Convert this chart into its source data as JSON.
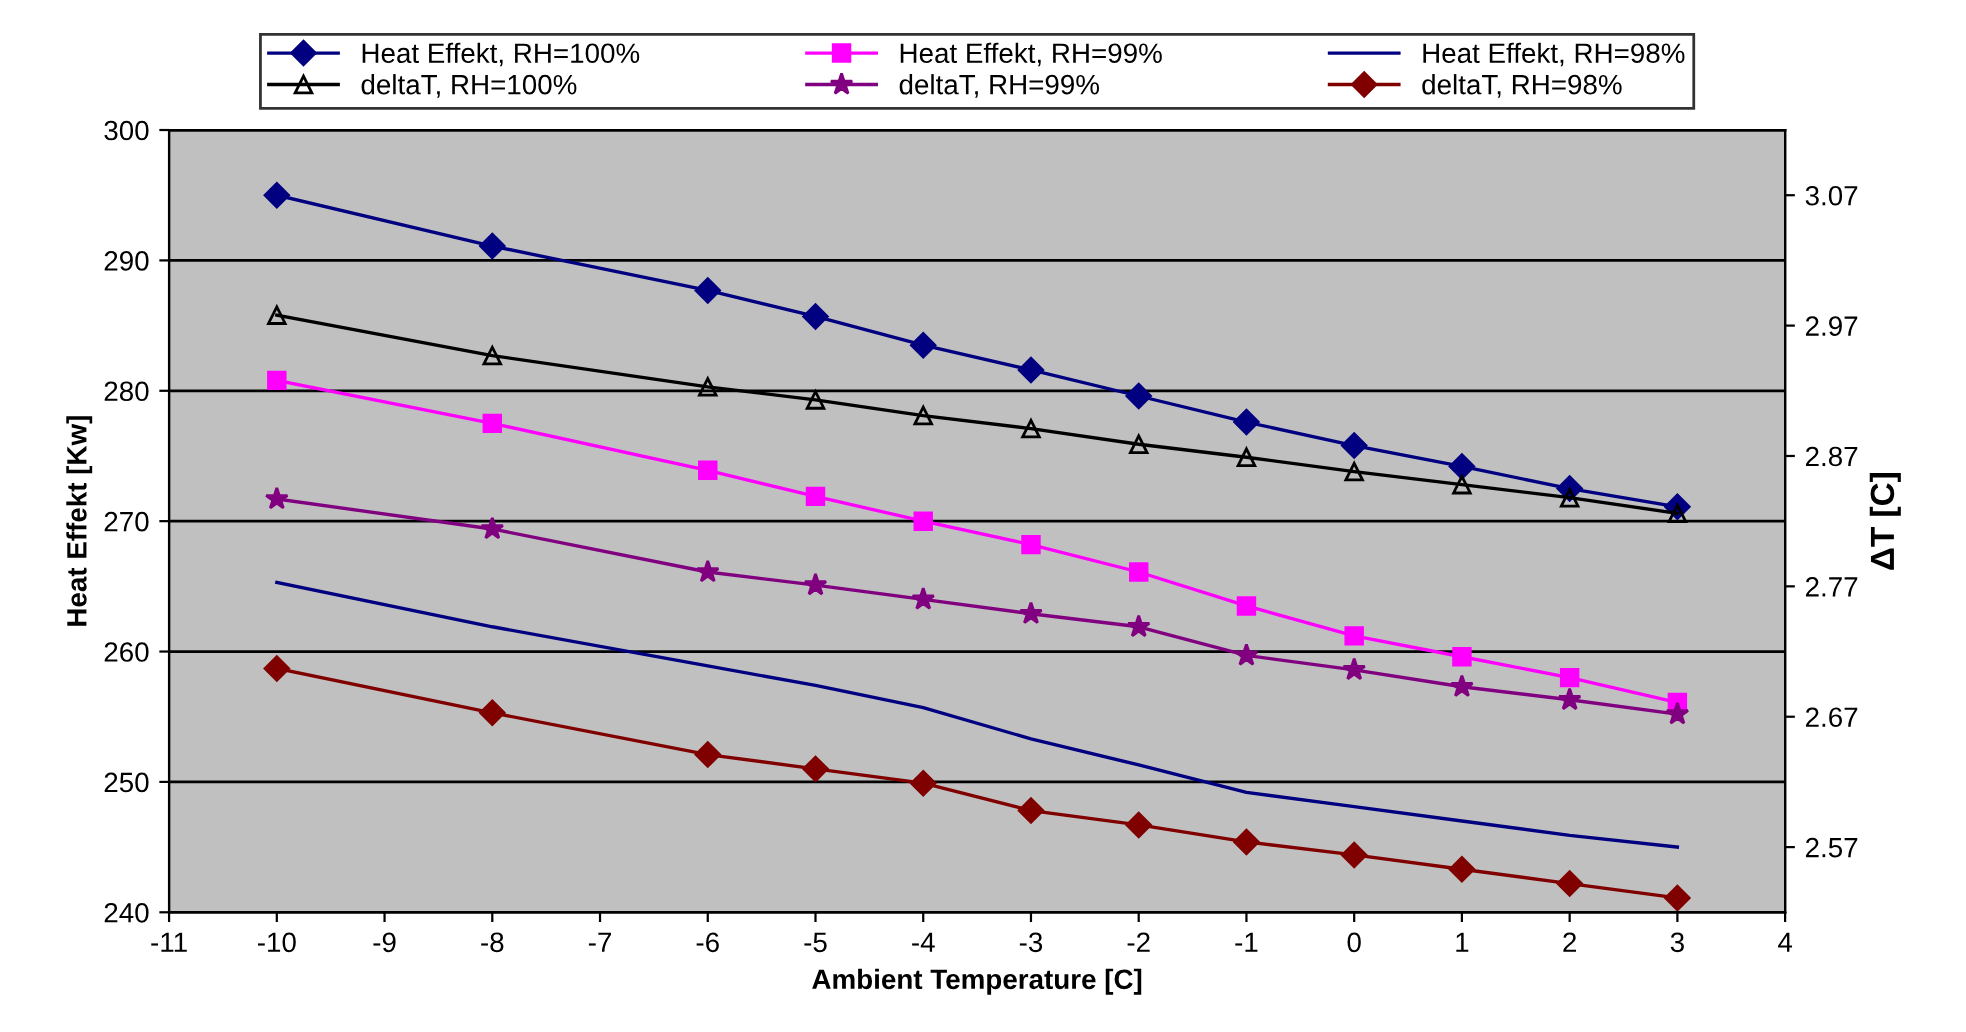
{
  "chart_data": {
    "type": "line",
    "xlabel": "Ambient Temperature [C]",
    "ylabel": "Heat Effekt [Kw]",
    "y2label": "ΔT [C]",
    "x": [
      -10,
      -8,
      -6,
      -5,
      -4,
      -3,
      -2,
      -1,
      0,
      1,
      2,
      3
    ],
    "xlim": [
      -11,
      4
    ],
    "xticks": [
      -11,
      -10,
      -9,
      -8,
      -7,
      -6,
      -5,
      -4,
      -3,
      -2,
      -1,
      0,
      1,
      2,
      3,
      4
    ],
    "ylim": [
      240,
      300
    ],
    "yticks": [
      240,
      250,
      260,
      270,
      280,
      290,
      300
    ],
    "y2lim": [
      2.52,
      3.12
    ],
    "y2ticks": [
      2.57,
      2.67,
      2.77,
      2.87,
      2.97,
      3.07
    ],
    "grid": "y",
    "legend": "top",
    "series": [
      {
        "name": "Heat Effekt, RH=100%",
        "color": "#000080",
        "marker": "diamond",
        "values": [
          295.0,
          291.1,
          287.7,
          285.7,
          283.5,
          281.6,
          279.6,
          277.6,
          275.8,
          274.2,
          272.5,
          271.1
        ]
      },
      {
        "name": "Heat Effekt, RH=99%",
        "color": "#ff00ff",
        "marker": "square",
        "values": [
          280.8,
          277.5,
          273.9,
          271.9,
          270.0,
          268.2,
          266.1,
          263.5,
          261.2,
          259.6,
          258.0,
          256.1
        ]
      },
      {
        "name": "Heat Effekt, RH=98%",
        "color": "#000080",
        "marker": "none",
        "values": [
          265.3,
          261.9,
          258.9,
          257.4,
          255.7,
          253.3,
          251.3,
          249.2,
          248.1,
          247.0,
          245.9,
          245.0
        ]
      },
      {
        "name": "deltaT, RH=100%",
        "color": "#000000",
        "marker": "triangle",
        "axis": "y2",
        "values": [
          2.978,
          2.947,
          2.923,
          2.913,
          2.901,
          2.891,
          2.879,
          2.869,
          2.858,
          2.848,
          2.838,
          2.826
        ]
      },
      {
        "name": "deltaT, RH=99%",
        "color": "#800080",
        "marker": "star",
        "axis": "y2",
        "values": [
          2.837,
          2.814,
          2.781,
          2.771,
          2.76,
          2.749,
          2.739,
          2.717,
          2.706,
          2.693,
          2.683,
          2.672
        ]
      },
      {
        "name": "deltaT, RH=98%",
        "color": "#800000",
        "marker": "diamond",
        "axis": "y2",
        "values": [
          2.707,
          2.673,
          2.641,
          2.63,
          2.619,
          2.598,
          2.587,
          2.574,
          2.564,
          2.553,
          2.542,
          2.531
        ]
      }
    ]
  }
}
